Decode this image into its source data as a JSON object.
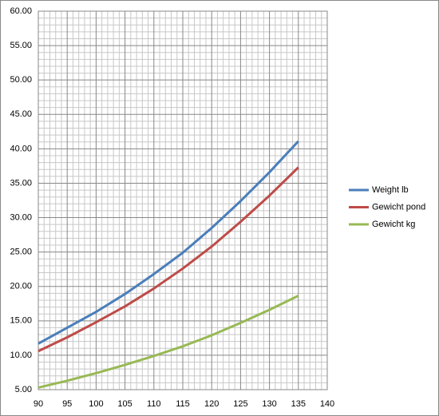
{
  "chart_data": {
    "type": "line",
    "x": [
      90,
      95,
      100,
      105,
      110,
      115,
      120,
      125,
      130,
      135
    ],
    "series": [
      {
        "name": "Weight lb",
        "color": "#4a7ebb",
        "values": [
          11.7,
          14.0,
          16.3,
          18.9,
          21.8,
          24.9,
          28.5,
          32.4,
          36.6,
          41.1
        ]
      },
      {
        "name": "Gewicht pond",
        "color": "#be4b48",
        "values": [
          10.6,
          12.6,
          14.8,
          17.1,
          19.7,
          22.6,
          25.8,
          29.4,
          33.2,
          37.3
        ]
      },
      {
        "name": "Gewicht kg",
        "color": "#98b954",
        "values": [
          5.3,
          6.3,
          7.4,
          8.6,
          9.9,
          11.3,
          12.9,
          14.7,
          16.6,
          18.65
        ]
      }
    ],
    "xlim": [
      90,
      140
    ],
    "xticks": [
      90,
      95,
      100,
      105,
      110,
      115,
      120,
      125,
      130,
      135,
      140
    ],
    "ylim": [
      5,
      60
    ],
    "yticks": [
      {
        "value": 5,
        "label": "5.00"
      },
      {
        "value": 10,
        "label": "10.00"
      },
      {
        "value": 15,
        "label": "15.00"
      },
      {
        "value": 20,
        "label": "20.00"
      },
      {
        "value": 25,
        "label": "25.00"
      },
      {
        "value": 30,
        "label": "30.00"
      },
      {
        "value": 35,
        "label": "35.00"
      },
      {
        "value": 40,
        "label": "40.00"
      },
      {
        "value": 45,
        "label": "45.00"
      },
      {
        "value": 50,
        "label": "50.00"
      },
      {
        "value": 55,
        "label": "55.00"
      },
      {
        "value": 60,
        "label": "60.00"
      }
    ],
    "grid": true,
    "minor_grid": true,
    "legend": "right"
  }
}
